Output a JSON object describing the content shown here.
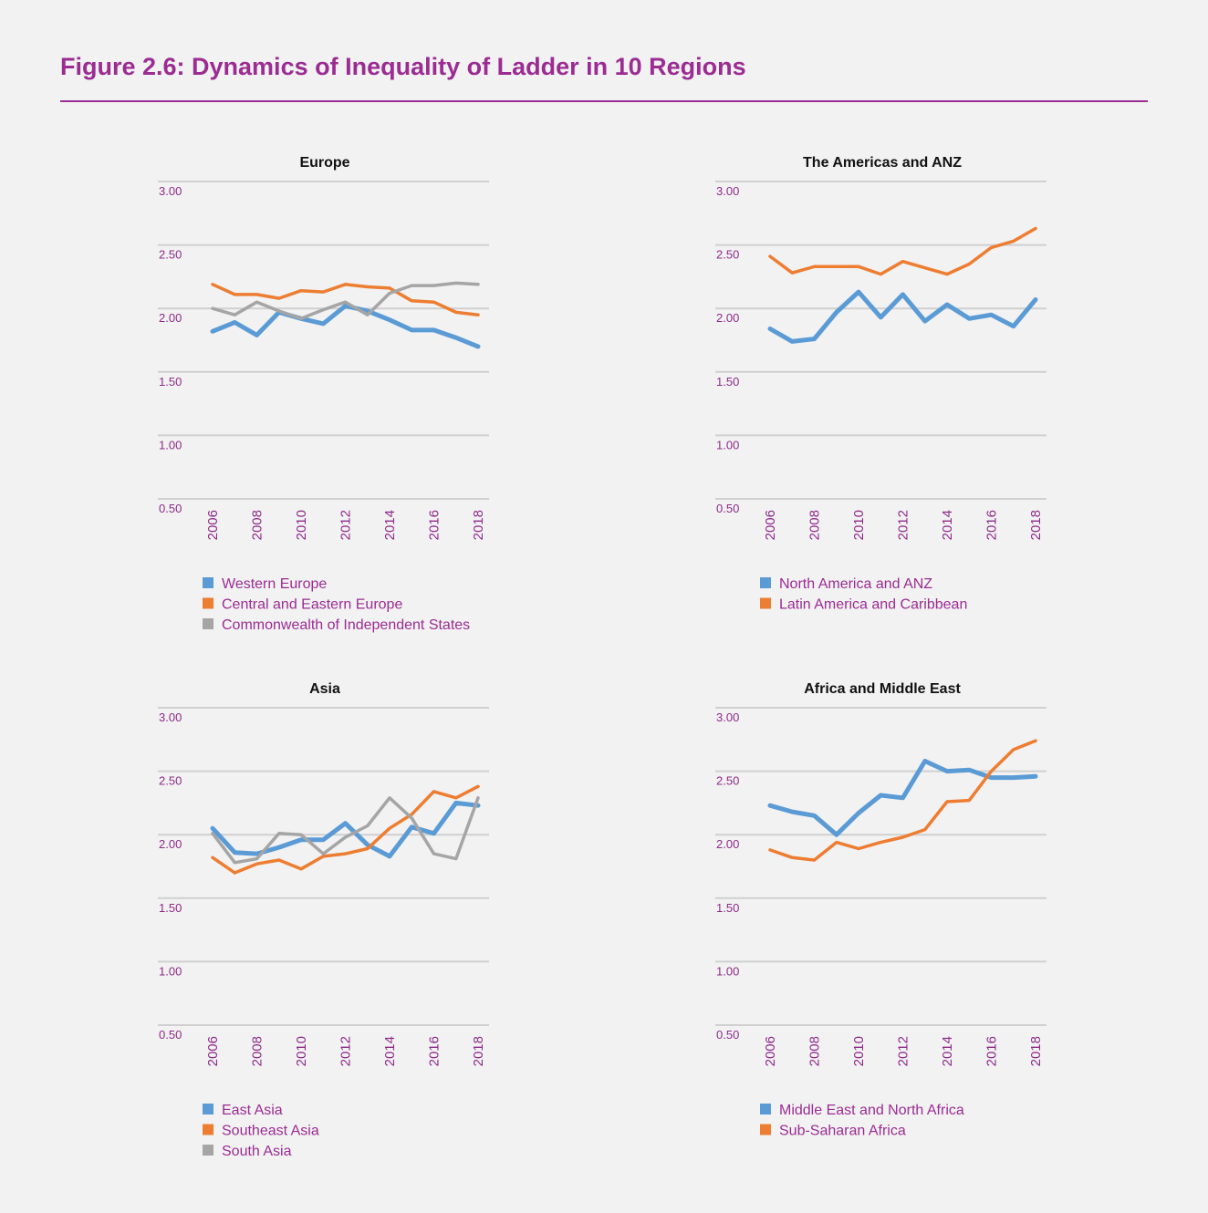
{
  "title": "Figure 2.6: Dynamics of Inequality of Ladder in 10 Regions",
  "colors": {
    "blue": "#5b9bd5",
    "orange": "#ed7d31",
    "gray": "#a5a5a5",
    "accent": "#9b2c92"
  },
  "chart_data": [
    {
      "type": "line",
      "title": "Europe",
      "x": [
        2006,
        2007,
        2008,
        2009,
        2010,
        2011,
        2012,
        2013,
        2014,
        2015,
        2016,
        2017,
        2018
      ],
      "xticks": [
        "2006",
        "2008",
        "2010",
        "2012",
        "2014",
        "2016",
        "2018"
      ],
      "ylim": [
        0.5,
        3.0
      ],
      "yticks": [
        "0.50",
        "1.00",
        "1.50",
        "2.00",
        "2.50",
        "3.00"
      ],
      "grid": true,
      "legend": "bottom",
      "series": [
        {
          "name": "Western Europe",
          "color": "#5b9bd5",
          "values": [
            1.82,
            1.89,
            1.79,
            1.97,
            1.92,
            1.88,
            2.02,
            1.98,
            1.91,
            1.83,
            1.83,
            1.77,
            1.7
          ]
        },
        {
          "name": "Central and Eastern Europe",
          "color": "#ed7d31",
          "values": [
            2.19,
            2.11,
            2.11,
            2.08,
            2.14,
            2.13,
            2.19,
            2.17,
            2.16,
            2.06,
            2.05,
            1.97,
            1.95
          ]
        },
        {
          "name": "Commonwealth of Independent States",
          "color": "#a5a5a5",
          "values": [
            2.0,
            1.95,
            2.05,
            1.98,
            1.92,
            1.99,
            2.05,
            1.95,
            2.12,
            2.18,
            2.18,
            2.2,
            2.19
          ]
        }
      ]
    },
    {
      "type": "line",
      "title": "The Americas and ANZ",
      "x": [
        2006,
        2007,
        2008,
        2009,
        2010,
        2011,
        2012,
        2013,
        2014,
        2015,
        2016,
        2017,
        2018
      ],
      "xticks": [
        "2006",
        "2008",
        "2010",
        "2012",
        "2014",
        "2016",
        "2018"
      ],
      "ylim": [
        0.5,
        3.0
      ],
      "yticks": [
        "0.50",
        "1.00",
        "1.50",
        "2.00",
        "2.50",
        "3.00"
      ],
      "grid": true,
      "legend": "bottom",
      "series": [
        {
          "name": "North America and ANZ",
          "color": "#5b9bd5",
          "values": [
            1.84,
            1.74,
            1.76,
            1.97,
            2.13,
            1.93,
            2.11,
            1.9,
            2.03,
            1.92,
            1.95,
            1.86,
            2.07
          ]
        },
        {
          "name": "Latin America and Caribbean",
          "color": "#ed7d31",
          "values": [
            2.41,
            2.28,
            2.33,
            2.33,
            2.33,
            2.27,
            2.37,
            2.32,
            2.27,
            2.35,
            2.48,
            2.53,
            2.63
          ]
        }
      ]
    },
    {
      "type": "line",
      "title": "Asia",
      "x": [
        2006,
        2007,
        2008,
        2009,
        2010,
        2011,
        2012,
        2013,
        2014,
        2015,
        2016,
        2017,
        2018
      ],
      "xticks": [
        "2006",
        "2008",
        "2010",
        "2012",
        "2014",
        "2016",
        "2018"
      ],
      "ylim": [
        0.5,
        3.0
      ],
      "yticks": [
        "0.50",
        "1.00",
        "1.50",
        "2.00",
        "2.50",
        "3.00"
      ],
      "grid": true,
      "legend": "bottom",
      "series": [
        {
          "name": "East Asia",
          "color": "#5b9bd5",
          "values": [
            2.05,
            1.86,
            1.85,
            1.9,
            1.96,
            1.96,
            2.09,
            1.92,
            1.83,
            2.06,
            2.01,
            2.25,
            2.23
          ]
        },
        {
          "name": "Southeast Asia",
          "color": "#ed7d31",
          "values": [
            1.82,
            1.7,
            1.77,
            1.8,
            1.73,
            1.83,
            1.85,
            1.89,
            2.05,
            2.16,
            2.34,
            2.29,
            2.38
          ]
        },
        {
          "name": "South Asia",
          "color": "#a5a5a5",
          "values": [
            2.01,
            1.78,
            1.81,
            2.01,
            2.0,
            1.85,
            1.98,
            2.07,
            2.29,
            2.13,
            1.85,
            1.81,
            2.29
          ]
        }
      ]
    },
    {
      "type": "line",
      "title": "Africa and Middle East",
      "x": [
        2006,
        2007,
        2008,
        2009,
        2010,
        2011,
        2012,
        2013,
        2014,
        2015,
        2016,
        2017,
        2018
      ],
      "xticks": [
        "2006",
        "2008",
        "2010",
        "2012",
        "2014",
        "2016",
        "2018"
      ],
      "ylim": [
        0.5,
        3.0
      ],
      "yticks": [
        "0.50",
        "1.00",
        "1.50",
        "2.00",
        "2.50",
        "3.00"
      ],
      "grid": true,
      "legend": "bottom",
      "series": [
        {
          "name": "Middle East and North Africa",
          "color": "#5b9bd5",
          "values": [
            2.23,
            2.18,
            2.15,
            2.0,
            2.17,
            2.31,
            2.29,
            2.58,
            2.5,
            2.51,
            2.45,
            2.45,
            2.46
          ]
        },
        {
          "name": "Sub-Saharan Africa",
          "color": "#ed7d31",
          "values": [
            1.88,
            1.82,
            1.8,
            1.94,
            1.89,
            1.94,
            1.98,
            2.04,
            2.26,
            2.27,
            2.5,
            2.67,
            2.74
          ]
        }
      ]
    }
  ]
}
